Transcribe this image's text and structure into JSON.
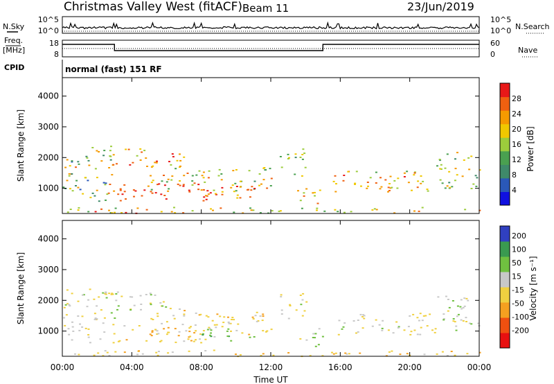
{
  "header": {
    "station": "Christmas Valley West (fitACF)",
    "beam": "Beam 11",
    "date": "23/Jun/2019"
  },
  "noise_panel": {
    "left_label": "N.Sky",
    "right_label": "N.Search",
    "left_ticks": [
      "10^5",
      "10^0"
    ],
    "right_ticks": [
      "10^5",
      "10^0"
    ]
  },
  "freq_panel": {
    "left_label_1": "Freq.",
    "left_label_2": "[MHz]",
    "right_label": "Nave",
    "left_ticks": [
      "18",
      "8"
    ],
    "right_ticks": [
      "60",
      "0"
    ]
  },
  "cpid": {
    "label": "CPID",
    "value": "normal (fast) 151 RF"
  },
  "colors": {
    "power_scale": [
      "#1010e0",
      "#2a58b8",
      "#3f8a6a",
      "#4aa050",
      "#9ccc3c",
      "#f0c800",
      "#f59a00",
      "#f06010",
      "#e81818"
    ],
    "velocity_scale": [
      "#e81010",
      "#f05010",
      "#f5a020",
      "#f0d040",
      "#c8c8c8",
      "#70c040",
      "#3a9a50",
      "#3040c0"
    ]
  },
  "chart_data": [
    {
      "type": "heatmap",
      "name": "power",
      "ylabel": "Slant Range [km]",
      "ylim": [
        180,
        4600
      ],
      "yticks": [
        1000,
        2000,
        3000,
        4000
      ],
      "colorbar_label": "Power [dB]",
      "colorbar_ticks": [
        "28",
        "24",
        "20",
        "16",
        "12",
        "8",
        "4"
      ],
      "colorbar_range": [
        0,
        32
      ]
    },
    {
      "type": "heatmap",
      "name": "velocity",
      "ylabel": "Slant Range [km]",
      "ylim": [
        180,
        4600
      ],
      "yticks": [
        1000,
        2000,
        3000,
        4000
      ],
      "colorbar_label": "Velocity [m s⁻¹]",
      "colorbar_ticks": [
        "200",
        "100",
        "50",
        "15",
        "-15",
        "-50",
        "-100",
        "-200"
      ]
    }
  ],
  "x_axis": {
    "label": "Time UT",
    "xlim": [
      0,
      24
    ],
    "ticks": [
      "00:00",
      "04:00",
      "08:00",
      "12:00",
      "16:00",
      "20:00",
      "00:00"
    ]
  },
  "echo_regions": [
    {
      "t": [
        0.0,
        3.0
      ],
      "r": [
        600,
        2400
      ],
      "pow": [
        6,
        26
      ],
      "vel": -10
    },
    {
      "t": [
        3.0,
        7.0
      ],
      "r": [
        1700,
        2300
      ],
      "pow": [
        16,
        30
      ],
      "vel": 5
    },
    {
      "t": [
        3.0,
        8.5
      ],
      "r": [
        600,
        1200
      ],
      "pow": [
        24,
        32
      ],
      "vel": -40
    },
    {
      "t": [
        5.0,
        12.0
      ],
      "r": [
        900,
        1700
      ],
      "pow": [
        10,
        28
      ],
      "vel": -30
    },
    {
      "t": [
        8.0,
        11.5
      ],
      "r": [
        700,
        1100
      ],
      "pow": [
        18,
        30
      ],
      "vel": 25
    },
    {
      "t": [
        12.5,
        14.0
      ],
      "r": [
        1400,
        2300
      ],
      "pow": [
        8,
        22
      ],
      "vel": -10
    },
    {
      "t": [
        13.5,
        15.0
      ],
      "r": [
        500,
        1100
      ],
      "pow": [
        14,
        30
      ],
      "vel": 10
    },
    {
      "t": [
        15.5,
        21.5
      ],
      "r": [
        900,
        1600
      ],
      "pow": [
        14,
        30
      ],
      "vel": -10
    },
    {
      "t": [
        21.5,
        24.0
      ],
      "r": [
        1000,
        2200
      ],
      "pow": [
        8,
        24
      ],
      "vel": 5
    },
    {
      "t": [
        0.0,
        24.0
      ],
      "r": [
        200,
        400
      ],
      "pow": [
        10,
        30
      ],
      "vel": -30
    }
  ]
}
